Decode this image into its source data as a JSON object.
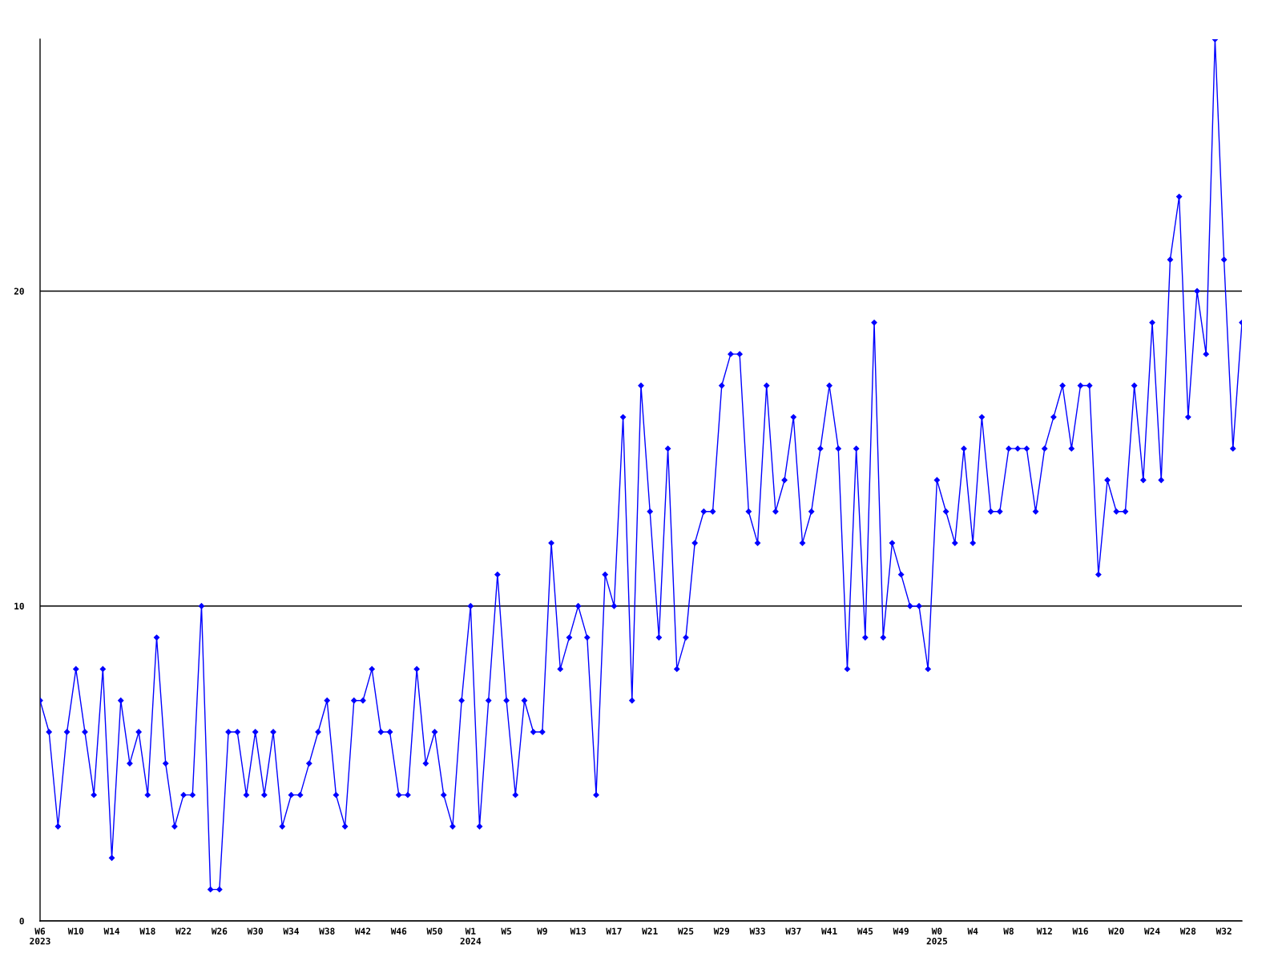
{
  "chart_data": {
    "type": "line",
    "categories": [
      "W6\n2023",
      null,
      null,
      null,
      "W10",
      null,
      null,
      null,
      "W14",
      null,
      null,
      null,
      "W18",
      null,
      null,
      null,
      "W22",
      null,
      null,
      null,
      "W26",
      null,
      null,
      null,
      "W30",
      null,
      null,
      null,
      "W34",
      null,
      null,
      null,
      "W38",
      null,
      null,
      null,
      "W42",
      null,
      null,
      null,
      "W46",
      null,
      null,
      null,
      "W50",
      null,
      null,
      null,
      "W1\n2024",
      null,
      null,
      null,
      "W5",
      null,
      null,
      null,
      "W9",
      null,
      null,
      null,
      "W13",
      null,
      null,
      null,
      "W17",
      null,
      null,
      null,
      "W21",
      null,
      null,
      null,
      "W25",
      null,
      null,
      null,
      "W29",
      null,
      null,
      null,
      "W33",
      null,
      null,
      null,
      "W37",
      null,
      null,
      null,
      "W41",
      null,
      null,
      null,
      "W45",
      null,
      null,
      null,
      "W49",
      null,
      null,
      null,
      "W0\n2025",
      null,
      null,
      null,
      "W4",
      null,
      null,
      null,
      "W8",
      null,
      null,
      null,
      "W12",
      null,
      null,
      null,
      "W16",
      null,
      null,
      null,
      "W20",
      null,
      null,
      null,
      "W24",
      null,
      null,
      null,
      "W28",
      null,
      null,
      null,
      "W32",
      null,
      null
    ],
    "series": [
      {
        "color": "#0000ff",
        "values": [
          7,
          6,
          3,
          6,
          8,
          6,
          4,
          8,
          2,
          7,
          5,
          6,
          4,
          9,
          5,
          3,
          4,
          4,
          10,
          1,
          1,
          6,
          6,
          4,
          6,
          4,
          6,
          3,
          4,
          4,
          5,
          6,
          7,
          4,
          3,
          7,
          7,
          8,
          6,
          6,
          4,
          4,
          8,
          5,
          6,
          4,
          3,
          7,
          10,
          3,
          7,
          11,
          7,
          4,
          7,
          6,
          6,
          12,
          8,
          9,
          10,
          9,
          4,
          11,
          10,
          16,
          7,
          17,
          13,
          9,
          15,
          8,
          9,
          12,
          13,
          13,
          17,
          18,
          18,
          13,
          12,
          17,
          13,
          14,
          16,
          12,
          13,
          15,
          17,
          15,
          8,
          15,
          9,
          19,
          9,
          12,
          11,
          10,
          10,
          8,
          14,
          13,
          12,
          15,
          12,
          16,
          13,
          13,
          15,
          15,
          15,
          13,
          15,
          16,
          17,
          15,
          17,
          17,
          11,
          14,
          13,
          13,
          17,
          14,
          19,
          14,
          21,
          23,
          16,
          20,
          18,
          28,
          21,
          15,
          19
        ]
      }
    ],
    "ylim": [
      0,
      28
    ],
    "yticks": [
      0,
      10,
      20
    ],
    "grid": "y",
    "marker": "diamond",
    "line_style": "solid",
    "legend": false
  }
}
